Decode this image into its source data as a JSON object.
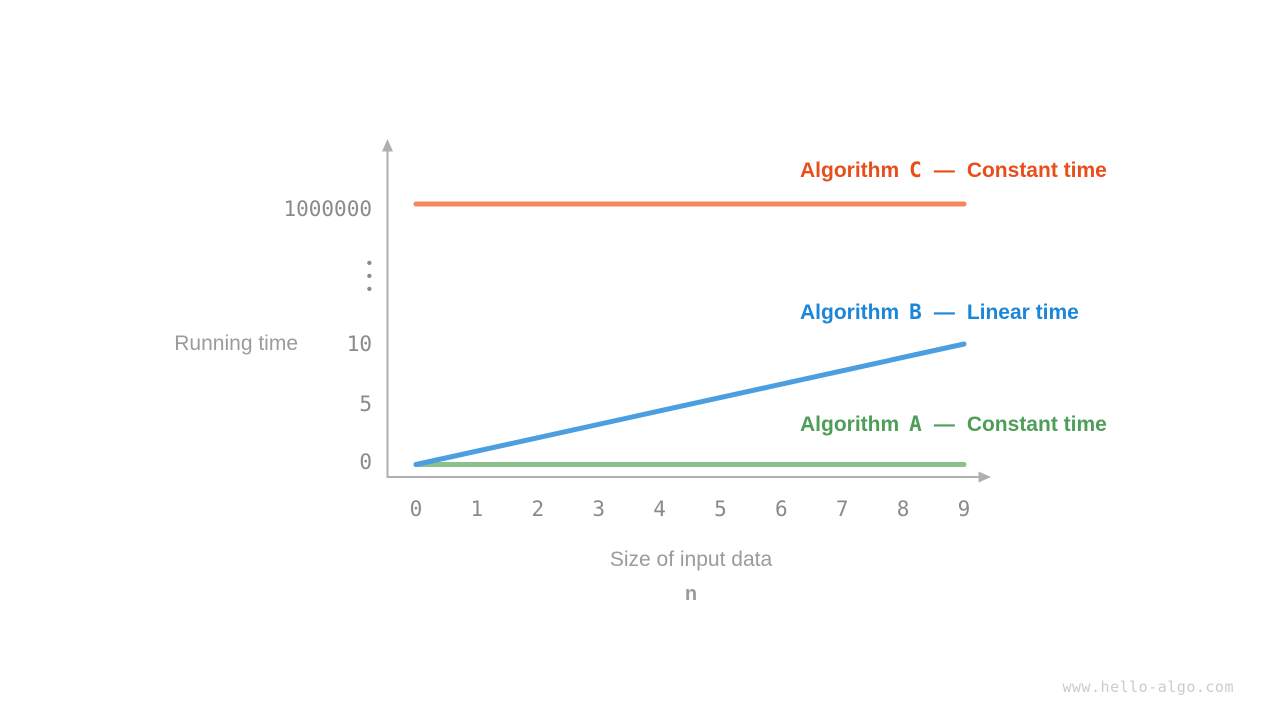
{
  "page": {
    "background_color": "#FFFFFF",
    "watermark": "www.hello-algo.com",
    "watermark_color": "#CBCBCB"
  },
  "axes": {
    "y_axis_title": "Running time",
    "x_axis_title": "Size of input data",
    "x_axis_variable": "n",
    "axis_color": "#AFAFAF",
    "tick_label_color": "#8A8A8A",
    "title_color": "#9B9B9B",
    "y_tick_labels": [
      "1000000",
      "⋮",
      "10",
      "5",
      "0"
    ],
    "x_tick_labels": [
      "0",
      "1",
      "2",
      "3",
      "4",
      "5",
      "6",
      "7",
      "8",
      "9"
    ]
  },
  "legend": [
    {
      "algorithm_word": "Algorithm",
      "letter": "C",
      "dash": "—",
      "complexity": "Constant time",
      "text_color": "#E84E1B"
    },
    {
      "algorithm_word": "Algorithm",
      "letter": "B",
      "dash": "—",
      "complexity": "Linear time",
      "text_color": "#1C87D8"
    },
    {
      "algorithm_word": "Algorithm",
      "letter": "A",
      "dash": "—",
      "complexity": "Constant time",
      "text_color": "#4F9E58"
    }
  ],
  "chart_data": {
    "type": "line",
    "title": "",
    "xlabel": "Size of input data (n)",
    "ylabel": "Running time",
    "xlim": [
      0,
      9
    ],
    "x_ticks": [
      0,
      1,
      2,
      3,
      4,
      5,
      6,
      7,
      8,
      9
    ],
    "y_ticks_shown": [
      0,
      5,
      10,
      1000000
    ],
    "y_axis_break_between": [
      10,
      1000000
    ],
    "grid": false,
    "legend_position": "inline-right",
    "series": [
      {
        "name": "Algorithm C",
        "complexity": "Constant time",
        "color": "#F5865F",
        "points": [
          [
            0,
            1000000
          ],
          [
            9,
            1000000
          ]
        ]
      },
      {
        "name": "Algorithm A",
        "complexity": "Constant time",
        "color": "#8CC08C",
        "points": [
          [
            0,
            0
          ],
          [
            9,
            0
          ]
        ]
      },
      {
        "name": "Algorithm B",
        "complexity": "Linear time",
        "color": "#4B9FE0",
        "points": [
          [
            0,
            0
          ],
          [
            9,
            10
          ]
        ]
      }
    ]
  }
}
